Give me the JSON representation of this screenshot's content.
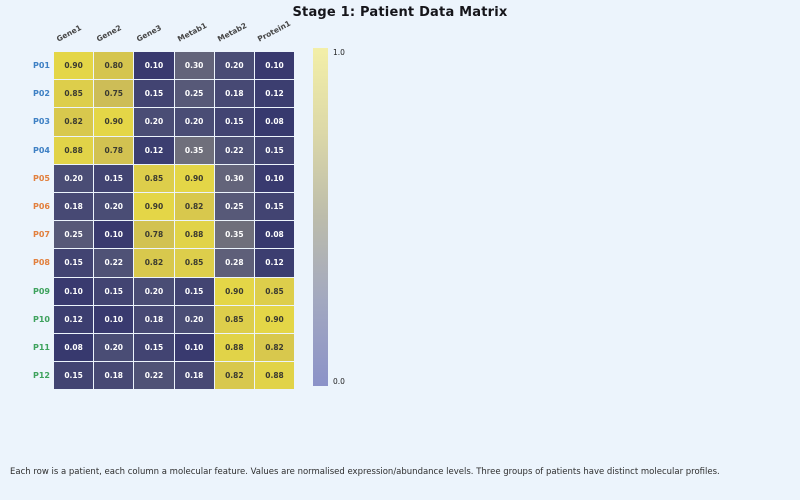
{
  "title": "Stage 1: Patient Data Matrix",
  "caption": "Each row is a patient, each column a molecular feature. Values are normalised expression/abundance levels. Three groups of patients have distinct molecular profiles.",
  "chart_data": {
    "type": "heatmap",
    "title": "Stage 1: Patient Data Matrix",
    "columns": [
      "Gene1",
      "Gene2",
      "Gene3",
      "Metab1",
      "Metab2",
      "Protein1"
    ],
    "rows": [
      "P01",
      "P02",
      "P03",
      "P04",
      "P05",
      "P06",
      "P07",
      "P08",
      "P09",
      "P10",
      "P11",
      "P12"
    ],
    "row_groups": [
      "blue",
      "blue",
      "blue",
      "blue",
      "orange",
      "orange",
      "orange",
      "orange",
      "green",
      "green",
      "green",
      "green"
    ],
    "values": [
      [
        0.9,
        0.8,
        0.1,
        0.3,
        0.2,
        0.1
      ],
      [
        0.85,
        0.75,
        0.15,
        0.25,
        0.18,
        0.12
      ],
      [
        0.82,
        0.9,
        0.2,
        0.2,
        0.15,
        0.08
      ],
      [
        0.88,
        0.78,
        0.12,
        0.35,
        0.22,
        0.15
      ],
      [
        0.2,
        0.15,
        0.85,
        0.9,
        0.3,
        0.1
      ],
      [
        0.18,
        0.2,
        0.9,
        0.82,
        0.25,
        0.15
      ],
      [
        0.25,
        0.1,
        0.78,
        0.88,
        0.35,
        0.08
      ],
      [
        0.15,
        0.22,
        0.82,
        0.85,
        0.28,
        0.12
      ],
      [
        0.1,
        0.15,
        0.2,
        0.15,
        0.9,
        0.85
      ],
      [
        0.12,
        0.1,
        0.18,
        0.2,
        0.85,
        0.9
      ],
      [
        0.08,
        0.2,
        0.15,
        0.1,
        0.88,
        0.82
      ],
      [
        0.15,
        0.18,
        0.22,
        0.18,
        0.82,
        0.88
      ]
    ],
    "value_format": "2dp",
    "value_range": [
      0,
      1
    ],
    "grid": false,
    "legend_position": "right-colorbar",
    "colorbar": {
      "max_label": "1.0",
      "min_label": "0.0"
    },
    "colors": {
      "background": "#ecf4fc",
      "title_color": "#15151a",
      "caption_color": "#2e2e2e",
      "column_label_color": "#454545",
      "annot_dark": "#3a3a30",
      "annot_light": "#ffffff",
      "group_label_colors": {
        "blue": "#3e80c4",
        "orange": "#e2803e",
        "green": "#3ea25d"
      },
      "colormap": [
        {
          "v": 0.0,
          "c": [
            49,
            54,
            107
          ]
        },
        {
          "v": 0.1,
          "c": [
            57,
            58,
            111
          ]
        },
        {
          "v": 0.2,
          "c": [
            74,
            77,
            117
          ]
        },
        {
          "v": 0.3,
          "c": [
            99,
            100,
            122
          ]
        },
        {
          "v": 0.4,
          "c": [
            123,
            122,
            124
          ]
        },
        {
          "v": 0.5,
          "c": [
            146,
            141,
            117
          ]
        },
        {
          "v": 0.6,
          "c": [
            170,
            159,
            106
          ]
        },
        {
          "v": 0.7,
          "c": [
            196,
            180,
            95
          ]
        },
        {
          "v": 0.8,
          "c": [
            213,
            197,
            78
          ]
        },
        {
          "v": 0.9,
          "c": [
            228,
            214,
            71
          ]
        },
        {
          "v": 1.0,
          "c": [
            240,
            226,
            62
          ]
        }
      ],
      "colorbar_gradient_bottom_to_top": [
        "#8b92c8",
        "#a2a8c0",
        "#bcbcab",
        "#dcd8a8",
        "#f3efa8"
      ]
    }
  }
}
